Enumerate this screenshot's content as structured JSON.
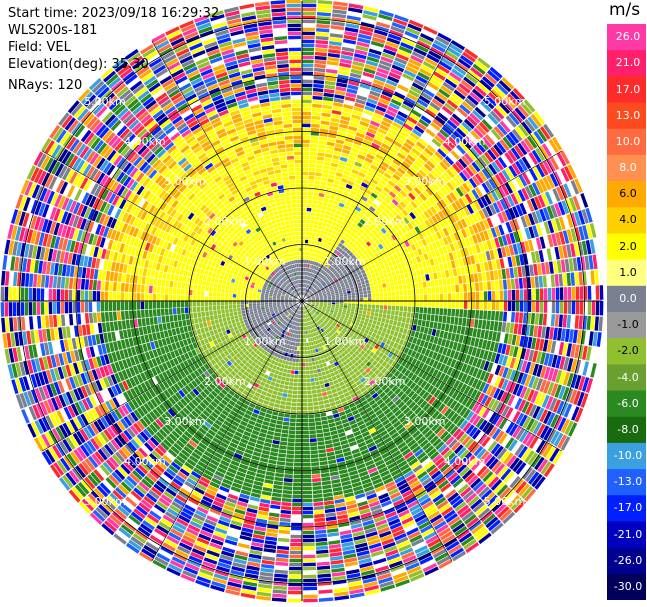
{
  "header": {
    "start_time": "Start time: 2023/09/18 16:29:32",
    "instrument": "WLS200s-181",
    "field": "Field: VEL",
    "elevation": "Elevation(deg): 35.30",
    "nrays": "NRays: 120"
  },
  "colorbar": {
    "unit": "m/s",
    "labels": [
      "26.0",
      "21.0",
      "17.0",
      "13.0",
      "10.0",
      "8.0",
      "6.0",
      "4.0",
      "2.0",
      "1.0",
      "0.0",
      "-1.0",
      "-2.0",
      "-4.0",
      "-6.0",
      "-8.0",
      "-10.0",
      "-13.0",
      "-17.0",
      "-21.0",
      "-26.0",
      "-30.0"
    ],
    "colors": [
      "#ff3aa6",
      "#ff1f6a",
      "#ff2a2a",
      "#ff4a20",
      "#ff6a40",
      "#ff9050",
      "#ffaa00",
      "#ffd000",
      "#ffff00",
      "#ffff80",
      "#7a8090",
      "#9a9a9a",
      "#90c030",
      "#6aa030",
      "#2a8a20",
      "#1a6a10",
      "#3aa0e0",
      "#2060ff",
      "#0020ff",
      "#0000c0",
      "#000090",
      "#00005a"
    ]
  },
  "range_labels": [
    "1.00km",
    "2.00km",
    "3.00km",
    "4.00km",
    "5.00km"
  ],
  "colors": {
    "ring": "#000000",
    "grid": "#000000"
  }
}
